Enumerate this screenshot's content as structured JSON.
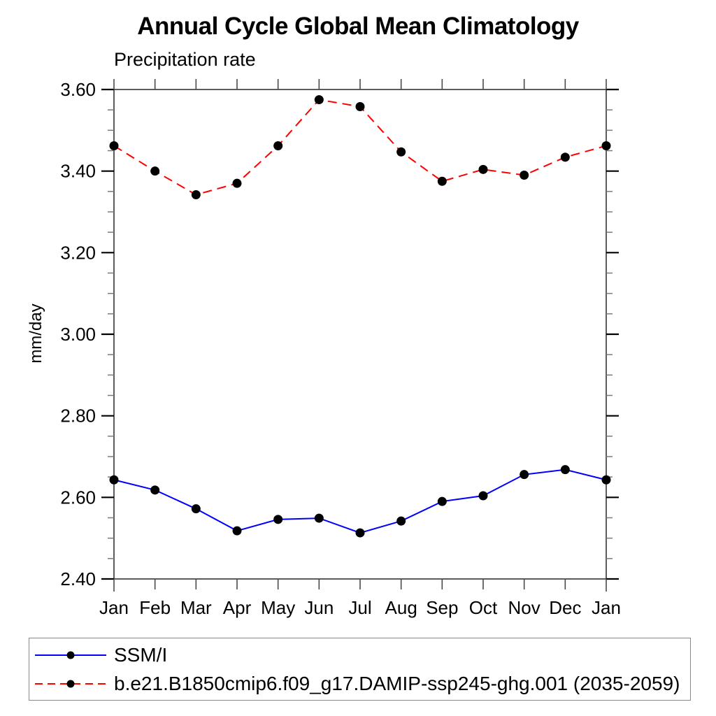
{
  "chart_data": {
    "type": "line",
    "title": "Annual Cycle Global Mean Climatology",
    "subtitle": "Precipitation rate",
    "ylabel": "mm/day",
    "xlabel": "",
    "ylim": [
      2.4,
      3.6
    ],
    "ytick_major_step": 0.2,
    "ytick_minor_step": 0.05,
    "ytick_labels": [
      "3.60",
      "3.40",
      "3.20",
      "3.00",
      "2.80",
      "2.60",
      "2.40"
    ],
    "grid": false,
    "legend_position": "bottom-left box",
    "categories": [
      "Jan",
      "Feb",
      "Mar",
      "Apr",
      "May",
      "Jun",
      "Jul",
      "Aug",
      "Sep",
      "Oct",
      "Nov",
      "Dec",
      "Jan"
    ],
    "series": [
      {
        "name": "SSM/I",
        "color": "#0000ff",
        "line_style": "solid",
        "marker": "filled-circle",
        "marker_color": "#000000",
        "values": [
          2.643,
          2.618,
          2.572,
          2.518,
          2.546,
          2.549,
          2.513,
          2.542,
          2.59,
          2.604,
          2.656,
          2.668,
          2.643
        ]
      },
      {
        "name": "b.e21.B1850cmip6.f09_g17.DAMIP-ssp245-ghg.001 (2035-2059)",
        "color": "#ff0000",
        "line_style": "dashed",
        "marker": "filled-circle",
        "marker_color": "#000000",
        "values": [
          3.462,
          3.4,
          3.342,
          3.37,
          3.462,
          3.575,
          3.558,
          3.447,
          3.375,
          3.404,
          3.39,
          3.434,
          3.462
        ]
      }
    ]
  }
}
